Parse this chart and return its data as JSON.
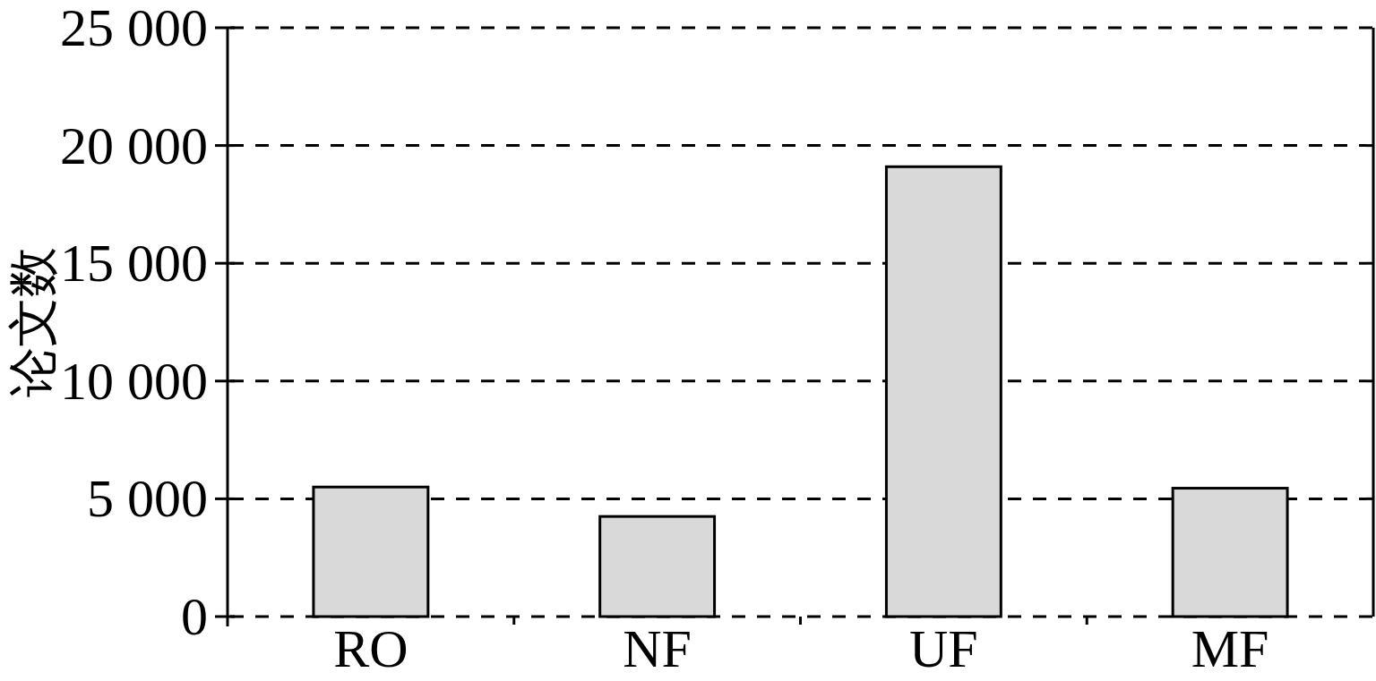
{
  "chart_data": {
    "type": "bar",
    "ylabel": "论文数",
    "categories": [
      "RO",
      "NF",
      "UF",
      "MF"
    ],
    "values": [
      5500,
      4250,
      19100,
      5450
    ],
    "color": "#d9d9d9",
    "ylim": [
      0,
      25000
    ],
    "yticks": [
      0,
      {
        "value": 5000,
        "label": "5 000"
      },
      {
        "value": 10000,
        "label": "10 000"
      },
      {
        "value": 15000,
        "label": "15 000"
      },
      {
        "value": 20000,
        "label": "20 000"
      },
      {
        "value": 25000,
        "label": "25 000"
      }
    ],
    "grid": "y"
  }
}
